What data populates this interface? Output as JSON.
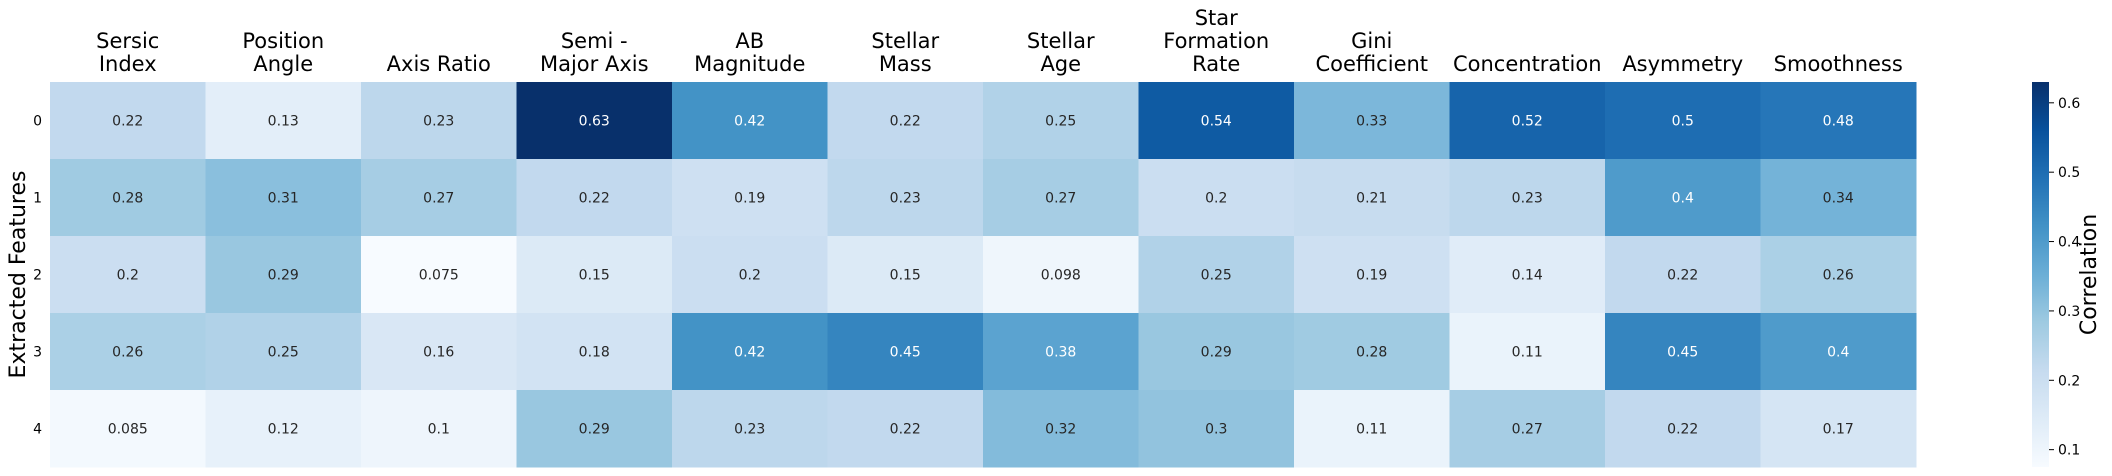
{
  "chart_data": {
    "type": "heatmap",
    "title": "",
    "xlabel": "",
    "ylabel": "Extracted Features",
    "columns": [
      [
        "Sersic",
        "Index"
      ],
      [
        "Position",
        "Angle"
      ],
      [
        "Axis Ratio"
      ],
      [
        "Semi -",
        "Major Axis"
      ],
      [
        "AB",
        "Magnitude"
      ],
      [
        "Stellar",
        "Mass"
      ],
      [
        "Stellar",
        "Age"
      ],
      [
        "Star",
        "Formation",
        "Rate"
      ],
      [
        "Gini",
        "Coefficient"
      ],
      [
        "Concentration"
      ],
      [
        "Asymmetry"
      ],
      [
        "Smoothness"
      ]
    ],
    "rows": [
      "0",
      "1",
      "2",
      "3",
      "4"
    ],
    "values": [
      [
        0.22,
        0.13,
        0.23,
        0.63,
        0.42,
        0.22,
        0.25,
        0.54,
        0.33,
        0.52,
        0.5,
        0.48
      ],
      [
        0.28,
        0.31,
        0.27,
        0.22,
        0.19,
        0.23,
        0.27,
        0.2,
        0.21,
        0.23,
        0.4,
        0.34
      ],
      [
        0.2,
        0.29,
        0.075,
        0.15,
        0.2,
        0.15,
        0.098,
        0.25,
        0.19,
        0.14,
        0.22,
        0.26
      ],
      [
        0.26,
        0.25,
        0.16,
        0.18,
        0.42,
        0.45,
        0.38,
        0.29,
        0.28,
        0.11,
        0.45,
        0.4
      ],
      [
        0.085,
        0.12,
        0.1,
        0.29,
        0.23,
        0.22,
        0.32,
        0.3,
        0.11,
        0.27,
        0.22,
        0.17
      ]
    ],
    "colorbar": {
      "label": "Correlation",
      "range": [
        0.075,
        0.63
      ],
      "ticks": [
        "0.1",
        "0.2",
        "0.3",
        "0.4",
        "0.5",
        "0.6"
      ],
      "colormap": "Blues"
    },
    "annotations": "cell values shown in each cell"
  }
}
